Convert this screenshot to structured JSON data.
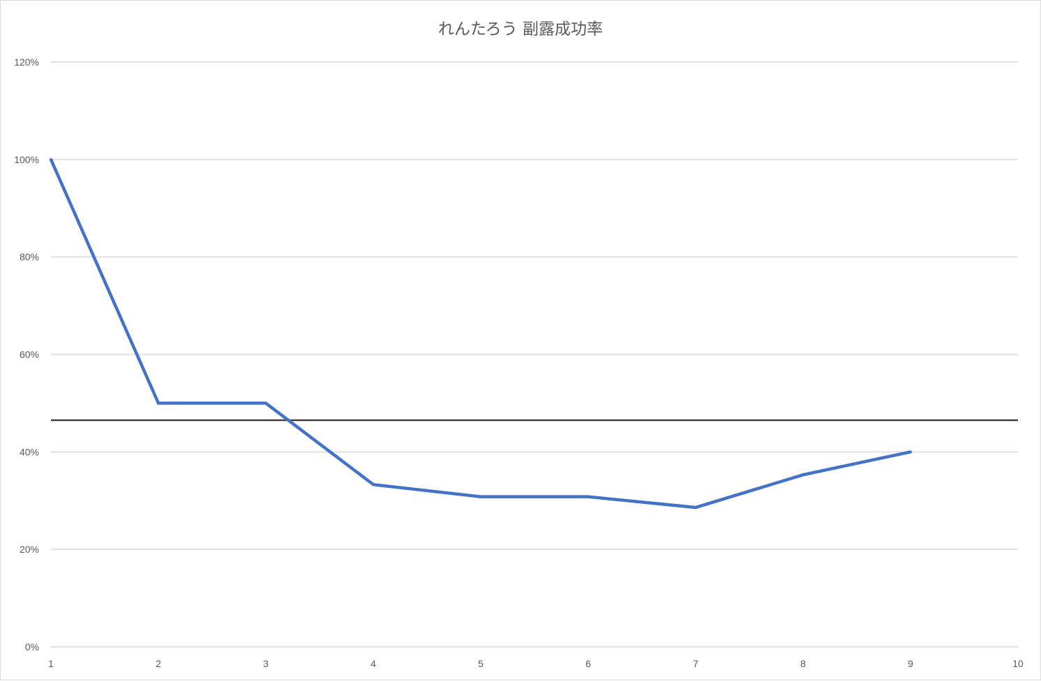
{
  "chart_data": {
    "type": "line",
    "title": "れんたろう 副露成功率",
    "xlabel": "",
    "ylabel": "",
    "x": [
      1,
      2,
      3,
      4,
      5,
      6,
      7,
      8,
      9
    ],
    "x_ticks": [
      "1",
      "2",
      "3",
      "4",
      "5",
      "6",
      "7",
      "8",
      "9",
      "10"
    ],
    "xlim": [
      1,
      10
    ],
    "y_ticks": [
      "0%",
      "20%",
      "40%",
      "60%",
      "80%",
      "100%",
      "120%"
    ],
    "ylim": [
      0,
      1.2
    ],
    "grid": "horizontal",
    "legend": "none",
    "series": [
      {
        "values": [
          1.0,
          0.5,
          0.5,
          0.333,
          0.308,
          0.308,
          0.286,
          0.353,
          0.4
        ],
        "color": "#4472C4"
      }
    ],
    "reference_line": {
      "value": 0.465,
      "color": "#404040"
    },
    "gridline_color": "#D9D9D9",
    "text_color": "#595959"
  }
}
